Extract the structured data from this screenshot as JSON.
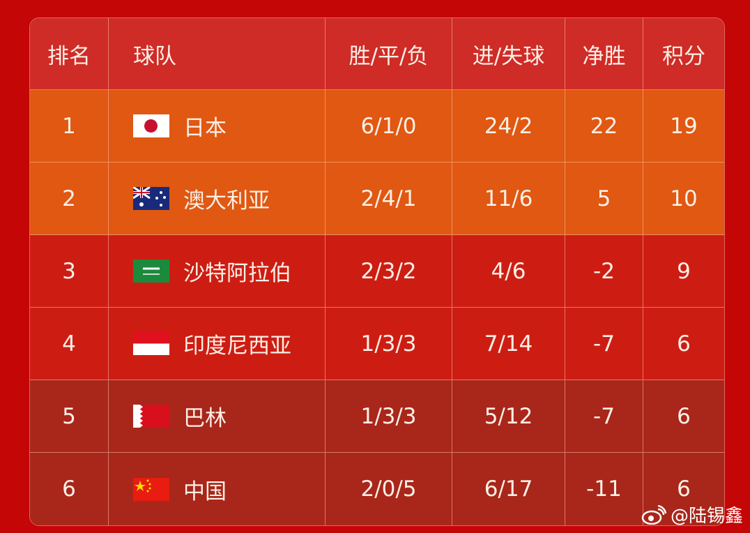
{
  "headers": [
    "排名",
    "球队",
    "胜/平/负",
    "进/失球",
    "净胜",
    "积分"
  ],
  "rows": [
    {
      "rank": "1",
      "flag": "japan-flag-icon",
      "team": "日本",
      "wdl": "6/1/0",
      "goals": "24/2",
      "gd": "22",
      "pts": "19"
    },
    {
      "rank": "2",
      "flag": "australia-flag-icon",
      "team": "澳大利亚",
      "wdl": "2/4/1",
      "goals": "11/6",
      "gd": "5",
      "pts": "10"
    },
    {
      "rank": "3",
      "flag": "saudi-arabia-flag-icon",
      "team": "沙特阿拉伯",
      "wdl": "2/3/2",
      "goals": "4/6",
      "gd": "-2",
      "pts": "9"
    },
    {
      "rank": "4",
      "flag": "indonesia-flag-icon",
      "team": "印度尼西亚",
      "wdl": "1/3/3",
      "goals": "7/14",
      "gd": "-7",
      "pts": "6"
    },
    {
      "rank": "5",
      "flag": "bahrain-flag-icon",
      "team": "巴林",
      "wdl": "1/3/3",
      "goals": "5/12",
      "gd": "-7",
      "pts": "6"
    },
    {
      "rank": "6",
      "flag": "china-flag-icon",
      "team": "中国",
      "wdl": "2/0/5",
      "goals": "6/17",
      "gd": "-11",
      "pts": "6"
    }
  ],
  "watermark": "@陆锡鑫",
  "colors": {
    "background": "#c40606",
    "header": "#cf2b27",
    "top_rows": "#e05811",
    "mid_rows": "#cd1d13",
    "bottom_rows": "#a9261a"
  }
}
